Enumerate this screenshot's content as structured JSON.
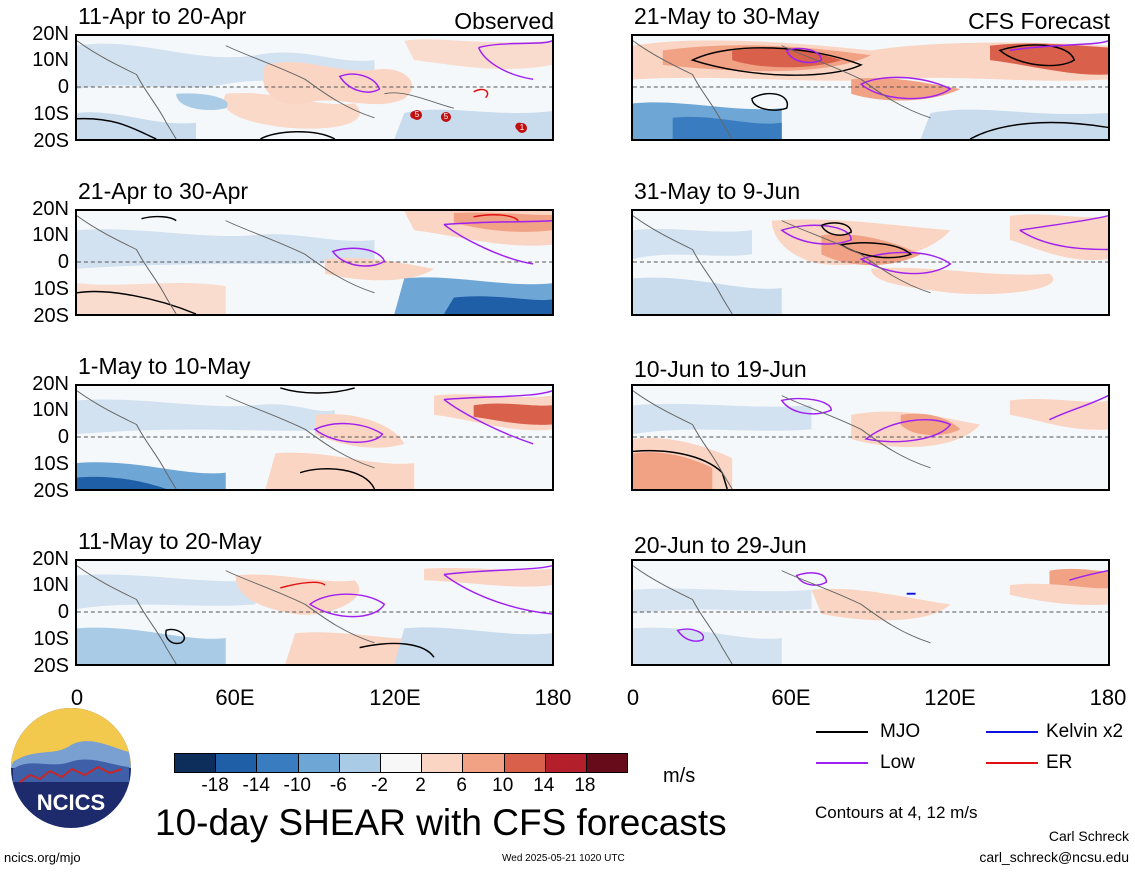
{
  "header": {
    "left_label": "Observed",
    "right_label": "CFS Forecast"
  },
  "panels": [
    {
      "title": "11-Apr to 20-Apr",
      "column": "observed"
    },
    {
      "title": "21-Apr to 30-Apr",
      "column": "observed"
    },
    {
      "title": "1-May to 10-May",
      "column": "observed"
    },
    {
      "title": "11-May to 20-May",
      "column": "observed"
    },
    {
      "title": "21-May to 30-May",
      "column": "forecast"
    },
    {
      "title": "31-May to 9-Jun",
      "column": "forecast"
    },
    {
      "title": "10-Jun to 19-Jun",
      "column": "forecast"
    },
    {
      "title": "20-Jun to 29-Jun",
      "column": "forecast"
    }
  ],
  "lat_labels": [
    "20N",
    "10N",
    "0",
    "10S",
    "20S"
  ],
  "lon_labels": [
    "0",
    "60E",
    "120E",
    "180"
  ],
  "storm_markers": [
    "5",
    "5",
    "1"
  ],
  "colorbar": {
    "labels": [
      "-18",
      "-14",
      "-10",
      "-6",
      "-2",
      "2",
      "6",
      "10",
      "14",
      "18"
    ],
    "colors": [
      "#0d2e5a",
      "#1f5fa8",
      "#3a7cc0",
      "#6ea6d6",
      "#a9cbe6",
      "#f7f7f7",
      "#fbd5c3",
      "#f1a184",
      "#d9614c",
      "#b41f2c",
      "#670a1a"
    ],
    "units": "m/s"
  },
  "legend": [
    {
      "label": "MJO",
      "color": "#000000"
    },
    {
      "label": "Kelvin x2",
      "color": "#1010e0"
    },
    {
      "label": "Low",
      "color": "#a020f0"
    },
    {
      "label": "ER",
      "color": "#e01010"
    }
  ],
  "contour_note": "Contours at 4, 12 m/s",
  "title": "10-day SHEAR with CFS forecasts",
  "author": "Carl Schreck",
  "email": "carl_schreck@ncsu.edu",
  "site": "ncics.org/mjo",
  "timestamp": "Wed 2025-05-21 1020 UTC",
  "logo_text": "NCICS"
}
